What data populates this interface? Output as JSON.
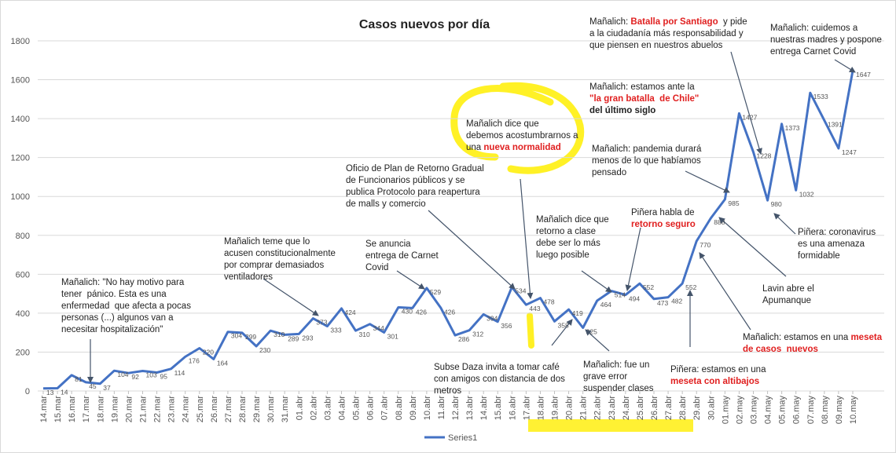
{
  "chart_data": {
    "type": "line",
    "title": "Casos nuevos por día",
    "categories": [
      "14.mar",
      "15.mar",
      "16.mar",
      "17.mar",
      "18.mar",
      "19.mar",
      "20.mar",
      "21.mar",
      "22.mar",
      "23.mar",
      "24.mar",
      "25.mar",
      "26.mar",
      "27.mar",
      "28.mar",
      "29.mar",
      "30.mar",
      "31.mar",
      "01.abr",
      "02.abr",
      "03.abr",
      "04.abr",
      "05.abr",
      "06.abr",
      "07.abr",
      "08.abr",
      "09.abr",
      "10.abr",
      "11.abr",
      "12.abr",
      "13.abr",
      "14.abr",
      "15.abr",
      "16.abr",
      "17.abr",
      "18.abr",
      "19.abr",
      "20.abr",
      "21.abr",
      "22.abr",
      "23.abr",
      "24.abr",
      "25.abr",
      "26.abr",
      "27.abr",
      "28.abr",
      "29.abr",
      "30.abr",
      "01.may",
      "02.may",
      "03.may",
      "04.may",
      "05.may",
      "06.may",
      "07.may",
      "08.may",
      "09.may",
      "10.may"
    ],
    "series": [
      {
        "name": "Series1",
        "color": "#4472c4",
        "values": [
          13,
          14,
          81,
          45,
          37,
          104,
          92,
          103,
          95,
          114,
          176,
          220,
          164,
          304,
          299,
          230,
          310,
          289,
          293,
          373,
          333,
          424,
          310,
          344,
          301,
          430,
          426,
          529,
          426,
          286,
          312,
          394,
          356,
          534,
          443,
          478,
          358,
          419,
          325,
          464,
          514,
          494,
          552,
          473,
          482,
          552,
          770,
          888,
          985,
          1427,
          1228,
          980,
          1373,
          1032,
          1533,
          1391,
          1247,
          1647
        ]
      }
    ],
    "ylim": [
      0,
      1800
    ],
    "yticks": [
      0,
      200,
      400,
      600,
      800,
      1000,
      1200,
      1400,
      1600,
      1800
    ],
    "grid": true,
    "legend": "bottom",
    "annotations": [
      {
        "lines": [
          [
            {
              "text": "Mañalich: \"No hay motivo para"
            }
          ],
          [
            {
              "text": "tener  pánico. Esta es una"
            }
          ],
          [
            {
              "text": "enfermedad  que afecta a pocas"
            }
          ],
          [
            {
              "text": "personas (...) algunos van a"
            }
          ],
          [
            {
              "text": "necesitar hospitalización\""
            }
          ]
        ]
      },
      {
        "lines": [
          [
            {
              "text": "Mañalich teme que lo"
            }
          ],
          [
            {
              "text": "acusen constitucionalmente"
            }
          ],
          [
            {
              "text": "por comprar demasiados"
            }
          ],
          [
            {
              "text": "ventiladores"
            }
          ]
        ]
      },
      {
        "lines": [
          [
            {
              "text": "Se anuncia"
            }
          ],
          [
            {
              "text": "entrega de Carnet"
            }
          ],
          [
            {
              "text": "Covid"
            }
          ]
        ]
      },
      {
        "lines": [
          [
            {
              "text": "Oficio de Plan de Retorno Gradual"
            }
          ],
          [
            {
              "text": "de Funcionarios públicos y se"
            }
          ],
          [
            {
              "text": "publica Protocolo para reapertura"
            }
          ],
          [
            {
              "text": "de malls y comercio"
            }
          ]
        ]
      },
      {
        "lines": [
          [
            {
              "text": "Mañalich dice que"
            }
          ],
          [
            {
              "text": "debemos acostumbrarnos a"
            }
          ],
          [
            {
              "text": "una "
            },
            {
              "text": "nueva normalidad",
              "color": "#e02020",
              "bold": true
            }
          ]
        ]
      },
      {
        "lines": [
          [
            {
              "text": "Subse Daza invita a tomar café"
            }
          ],
          [
            {
              "text": "con amigos con distancia de dos"
            }
          ],
          [
            {
              "text": "metros"
            }
          ]
        ]
      },
      {
        "lines": [
          [
            {
              "text": "Mañalich dice que"
            }
          ],
          [
            {
              "text": "retorno a clase"
            }
          ],
          [
            {
              "text": "debe ser lo más"
            }
          ],
          [
            {
              "text": "luego posible"
            }
          ]
        ]
      },
      {
        "lines": [
          [
            {
              "text": "Piñera habla de"
            }
          ],
          [
            {
              "text": "retorno seguro",
              "color": "#e02020",
              "bold": true
            }
          ]
        ]
      },
      {
        "lines": [
          [
            {
              "text": "Mañalich: fue un"
            }
          ],
          [
            {
              "text": "grave error"
            }
          ],
          [
            {
              "text": "suspender clases"
            }
          ]
        ]
      },
      {
        "lines": [
          [
            {
              "text": "Mañalich: "
            },
            {
              "text": "Batalla por Santiago",
              "color": "#e02020",
              "bold": true
            },
            {
              "text": "  y pide"
            }
          ],
          [
            {
              "text": "a la ciudadanía más responsabilidad y"
            }
          ],
          [
            {
              "text": "que piensen en nuestros abuelos"
            }
          ]
        ]
      },
      {
        "lines": [
          [
            {
              "text": "Mañalich: estamos ante la"
            }
          ],
          [
            {
              "text": "\"la gran batalla  de Chile\"",
              "color": "#e02020",
              "bold": true
            }
          ],
          [
            {
              "text": "del último siglo",
              "bold": true
            }
          ]
        ]
      },
      {
        "lines": [
          [
            {
              "text": "Mañalich: pandemia durará"
            }
          ],
          [
            {
              "text": "menos de lo que habíamos"
            }
          ],
          [
            {
              "text": "pensado"
            }
          ]
        ]
      },
      {
        "lines": [
          [
            {
              "text": "Mañalich: cuidemos a"
            }
          ],
          [
            {
              "text": "nuestras madres y pospone"
            }
          ],
          [
            {
              "text": "entrega Carnet Covid"
            }
          ]
        ]
      },
      {
        "lines": [
          [
            {
              "text": "Piñera: coronavirus"
            }
          ],
          [
            {
              "text": "es una amenaza"
            }
          ],
          [
            {
              "text": "formidable"
            }
          ]
        ]
      },
      {
        "lines": [
          [
            {
              "text": "Lavin abre el"
            }
          ],
          [
            {
              "text": "Apumanque"
            }
          ]
        ]
      },
      {
        "lines": [
          [
            {
              "text": "Mañalich: estamos en una "
            },
            {
              "text": "meseta",
              "color": "#e02020",
              "bold": true
            }
          ],
          [
            {
              "text": "de casos  nuevos",
              "color": "#e02020",
              "bold": true
            }
          ]
        ]
      },
      {
        "lines": [
          [
            {
              "text": "Piñera: estamos en una"
            }
          ],
          [
            {
              "text": "meseta con altibajos",
              "color": "#e02020",
              "bold": true
            }
          ]
        ]
      }
    ]
  }
}
